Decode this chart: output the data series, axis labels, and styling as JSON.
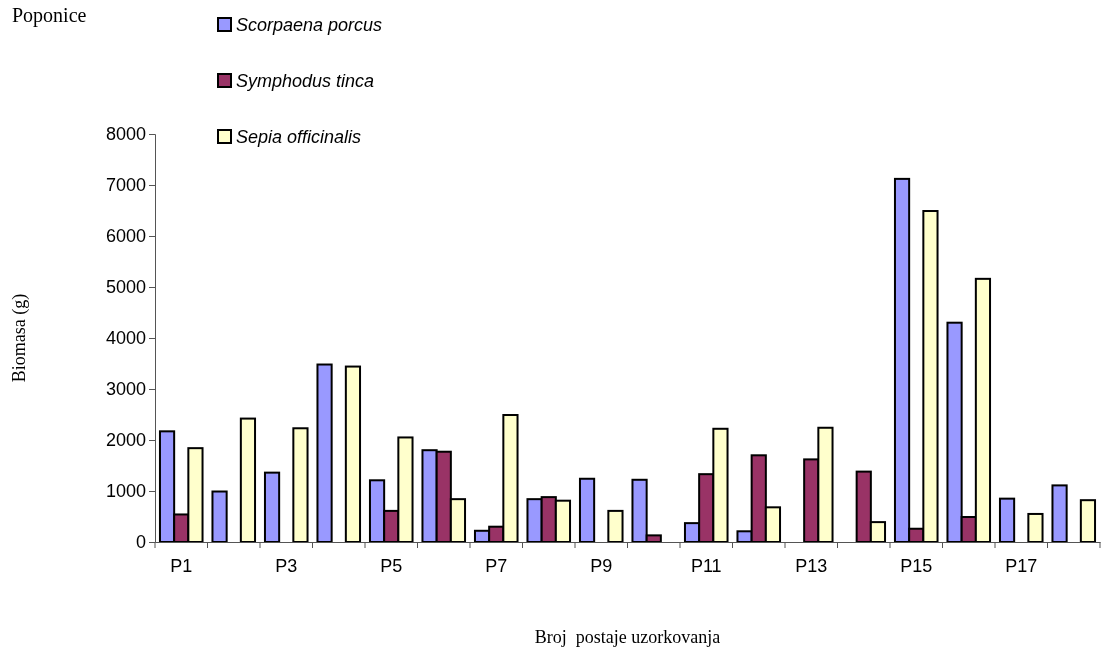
{
  "chart_data": {
    "type": "bar",
    "title": "Poponice",
    "xlabel": "Broj  postaje uzorkovanja",
    "ylabel": "Biomasa (g)",
    "categories": [
      "P1",
      null,
      "P3",
      null,
      "P5",
      null,
      "P7",
      null,
      "P9",
      null,
      "P11",
      null,
      "P13",
      null,
      "P15",
      null,
      "P17",
      null
    ],
    "series": [
      {
        "name": "Scorpaena porcus",
        "color": "#9999ff",
        "values": [
          2170,
          990,
          1360,
          3480,
          1210,
          1800,
          220,
          840,
          1240,
          1220,
          370,
          210,
          null,
          null,
          7120,
          4300,
          850,
          1110
        ]
      },
      {
        "name": "Symphodus tinca",
        "color": "#993366",
        "values": [
          540,
          null,
          null,
          null,
          610,
          1770,
          300,
          880,
          null,
          130,
          1330,
          1700,
          1620,
          1380,
          260,
          490,
          null,
          null
        ]
      },
      {
        "name": "Sepia officinalis",
        "color": "#ffffcc",
        "values": [
          1840,
          2420,
          2230,
          3440,
          2050,
          840,
          2490,
          810,
          610,
          null,
          2220,
          680,
          2240,
          390,
          6490,
          5160,
          550,
          820
        ]
      }
    ],
    "ylim": [
      0,
      8000
    ],
    "yticks": [
      0,
      1000,
      2000,
      3000,
      4000,
      5000,
      6000,
      7000,
      8000
    ],
    "grid": false,
    "legend": "top left"
  }
}
